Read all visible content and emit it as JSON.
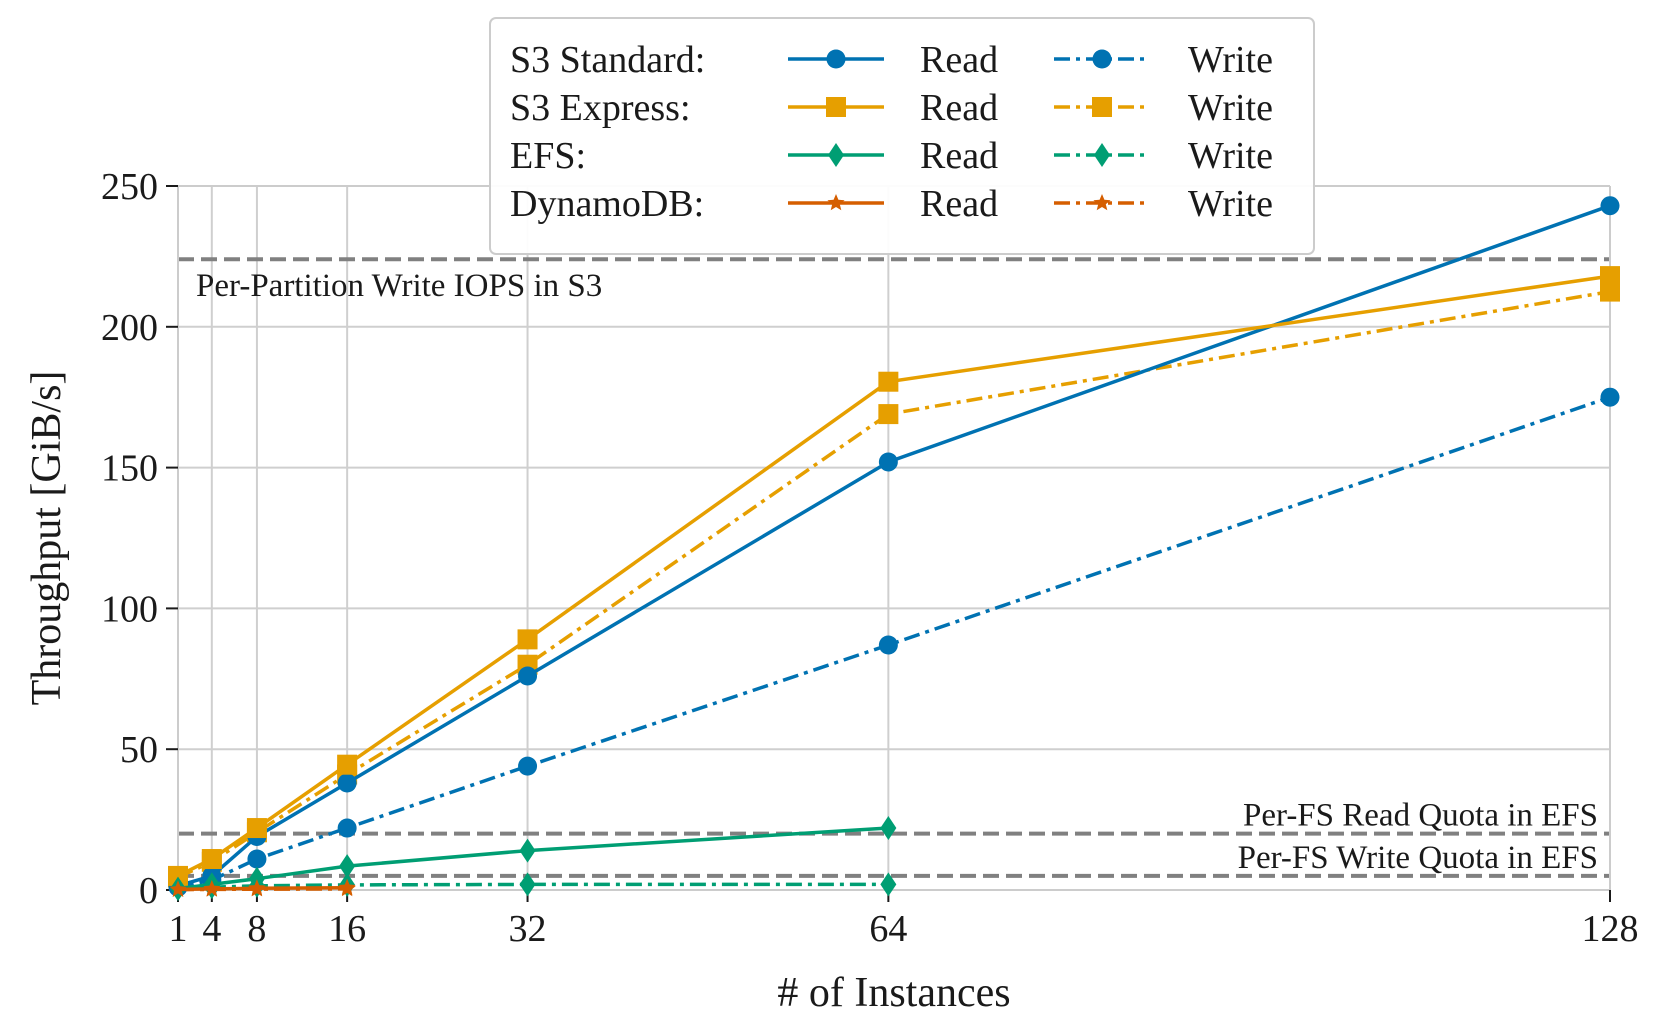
{
  "chart_data": {
    "type": "line",
    "xlabel": "# of Instances",
    "ylabel": "Throughput [GiB/s]",
    "x": [
      1,
      4,
      8,
      16,
      32,
      64,
      128
    ],
    "xticks": [
      1,
      4,
      8,
      16,
      32,
      64,
      128
    ],
    "xlim": [
      1,
      128
    ],
    "yticks": [
      0,
      50,
      100,
      150,
      200,
      250
    ],
    "ylim": [
      0,
      250
    ],
    "grid": true,
    "legend_position": "top-center",
    "legend": {
      "rows": [
        {
          "label": "S3 Standard:",
          "color": "#0072b2",
          "marker": "circle"
        },
        {
          "label": "S3 Express:",
          "color": "#e69f00",
          "marker": "square"
        },
        {
          "label": "EFS:",
          "color": "#009e73",
          "marker": "diamond"
        },
        {
          "label": "DynamoDB:",
          "color": "#d55e00",
          "marker": "star"
        }
      ],
      "columns": [
        "Read",
        "Write"
      ]
    },
    "reference_lines": [
      {
        "label": "Per-Partition Write IOPS in S3",
        "y": 224,
        "label_align": "left"
      },
      {
        "label": "Per-FS Read Quota in EFS",
        "y": 20,
        "label_align": "right"
      },
      {
        "label": "Per-FS Write Quota in EFS",
        "y": 5,
        "label_align": "right"
      }
    ],
    "series": [
      {
        "name": "S3 Standard: Read",
        "color": "#0072b2",
        "marker": "circle",
        "dash": "solid",
        "x": [
          1,
          4,
          8,
          16,
          32,
          64,
          128
        ],
        "values": [
          1.5,
          5,
          19,
          38,
          76,
          152,
          243
        ]
      },
      {
        "name": "S3 Standard: Write",
        "color": "#0072b2",
        "marker": "circle",
        "dash": "dashdot",
        "x": [
          1,
          4,
          8,
          16,
          32,
          64,
          128
        ],
        "values": [
          1,
          3.5,
          11,
          22,
          44,
          87,
          175
        ]
      },
      {
        "name": "S3 Express: Read",
        "color": "#e69f00",
        "marker": "square",
        "dash": "solid",
        "x": [
          1,
          4,
          8,
          16,
          32,
          64,
          128
        ],
        "values": [
          5,
          11,
          22,
          44.5,
          89,
          180.5,
          218
        ]
      },
      {
        "name": "S3 Express: Write",
        "color": "#e69f00",
        "marker": "square",
        "dash": "dashdot",
        "x": [
          1,
          4,
          8,
          16,
          32,
          64,
          128
        ],
        "values": [
          4.5,
          10,
          20.5,
          41,
          80,
          169,
          212.5
        ]
      },
      {
        "name": "EFS: Read",
        "color": "#009e73",
        "marker": "diamond",
        "dash": "solid",
        "x": [
          1,
          4,
          8,
          16,
          32,
          64
        ],
        "values": [
          0.5,
          2,
          4,
          8.5,
          14,
          22
        ]
      },
      {
        "name": "EFS: Write",
        "color": "#009e73",
        "marker": "diamond",
        "dash": "dashdot",
        "x": [
          1,
          4,
          8,
          16,
          32,
          64
        ],
        "values": [
          0.3,
          1,
          1.5,
          1.8,
          2,
          2
        ]
      },
      {
        "name": "DynamoDB: Read",
        "color": "#d55e00",
        "marker": "star",
        "dash": "solid",
        "x": [
          1,
          4,
          8,
          16
        ],
        "values": [
          0.2,
          0.4,
          0.6,
          0.8
        ]
      },
      {
        "name": "DynamoDB: Write",
        "color": "#d55e00",
        "marker": "star",
        "dash": "dashdot",
        "x": [
          1,
          4,
          8,
          16
        ],
        "values": [
          0.1,
          0.2,
          0.3,
          0.4
        ]
      }
    ]
  }
}
